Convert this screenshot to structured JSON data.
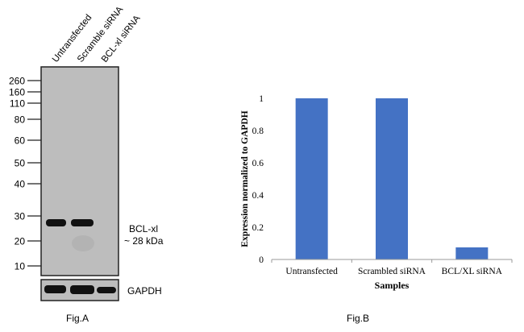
{
  "figure_a": {
    "caption": "Fig.A",
    "lanes": [
      "Untransfected",
      "Scramble siRNA",
      "BCL-xl siRNA"
    ],
    "markers": [
      {
        "label": "260",
        "kda": 260
      },
      {
        "label": "160",
        "kda": 160
      },
      {
        "label": "110",
        "kda": 110
      },
      {
        "label": "80",
        "kda": 80
      },
      {
        "label": "60",
        "kda": 60
      },
      {
        "label": "50",
        "kda": 50
      },
      {
        "label": "40",
        "kda": 40
      },
      {
        "label": "30",
        "kda": 30
      },
      {
        "label": "20",
        "kda": 20
      },
      {
        "label": "10",
        "kda": 10
      }
    ],
    "band_label": "BCL-xl",
    "band_size": "~ 28 kDa",
    "loading_control": "GAPDH",
    "colors": {
      "membrane": "#bdbdbd",
      "band": "#111111"
    }
  },
  "chart_data": {
    "type": "bar",
    "title": "",
    "caption": "Fig.B",
    "categories": [
      "Untransfected",
      "Scrambled siRNA",
      "BCL/XL siRNA"
    ],
    "values": [
      1.0,
      1.0,
      0.075
    ],
    "xlabel": "Samples",
    "ylabel": "Expression normalized to GAPDH",
    "ylim": [
      0,
      1
    ],
    "yticks": [
      "0",
      "0.2",
      "0.4",
      "0.6",
      "0.8",
      "1"
    ],
    "grid": false,
    "legend": "none",
    "color": "#4472c4"
  }
}
